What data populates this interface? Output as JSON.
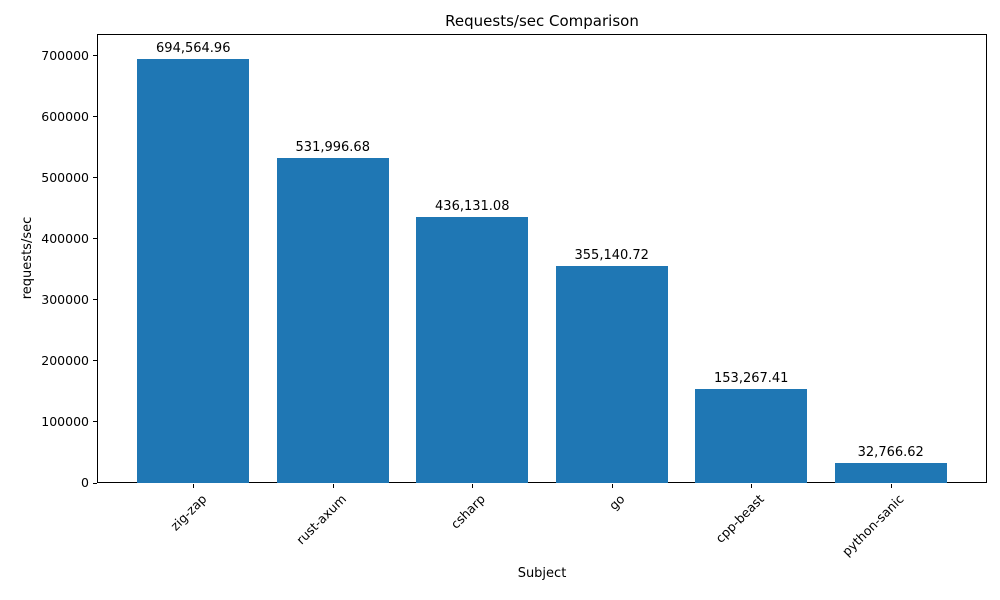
{
  "chart_data": {
    "type": "bar",
    "title": "Requests/sec Comparison",
    "xlabel": "Subject",
    "ylabel": "requests/sec",
    "categories": [
      "zig-zap",
      "rust-axum",
      "csharp",
      "go",
      "cpp-beast",
      "python-sanic"
    ],
    "values": [
      694564.96,
      531996.68,
      436131.08,
      355140.72,
      153267.41,
      32766.62
    ],
    "value_labels": [
      "694,564.96",
      "531,996.68",
      "436,131.08",
      "355,140.72",
      "153,267.41",
      "32,766.62"
    ],
    "yticks": [
      0,
      100000,
      200000,
      300000,
      400000,
      500000,
      600000,
      700000
    ],
    "ytick_labels": [
      "0",
      "100000",
      "200000",
      "300000",
      "400000",
      "500000",
      "600000",
      "700000"
    ],
    "ylim": [
      0,
      736000
    ],
    "bar_color": "#1f77b4",
    "grid": false,
    "legend": null
  }
}
